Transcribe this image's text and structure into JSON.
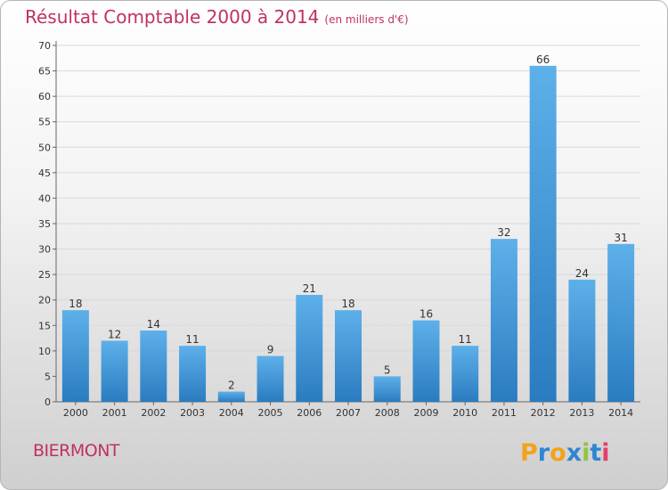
{
  "title": "Résultat Comptable 2000 à 2014",
  "subtitle": "(en milliers d'€)",
  "place": "BIERMONT",
  "logo_text": "Proxiti",
  "colors": {
    "title": "#c0325f",
    "bar_top": "#5eb0ea",
    "bar_bottom": "#2a7cc0",
    "grid": "#d9d9d9"
  },
  "chart_data": {
    "type": "bar",
    "categories": [
      "2000",
      "2001",
      "2002",
      "2003",
      "2004",
      "2005",
      "2006",
      "2007",
      "2008",
      "2009",
      "2010",
      "2011",
      "2012",
      "2013",
      "2014"
    ],
    "values": [
      18,
      12,
      14,
      11,
      2,
      9,
      21,
      18,
      5,
      16,
      11,
      32,
      66,
      24,
      31
    ],
    "title": "Résultat Comptable 2000 à 2014",
    "subtitle": "(en milliers d'€)",
    "xlabel": "",
    "ylabel": "",
    "ylim": [
      0,
      70
    ],
    "yticks": [
      0,
      5,
      10,
      15,
      20,
      25,
      30,
      35,
      40,
      45,
      50,
      55,
      60,
      65,
      70
    ],
    "grid": true,
    "data_labels": true
  }
}
